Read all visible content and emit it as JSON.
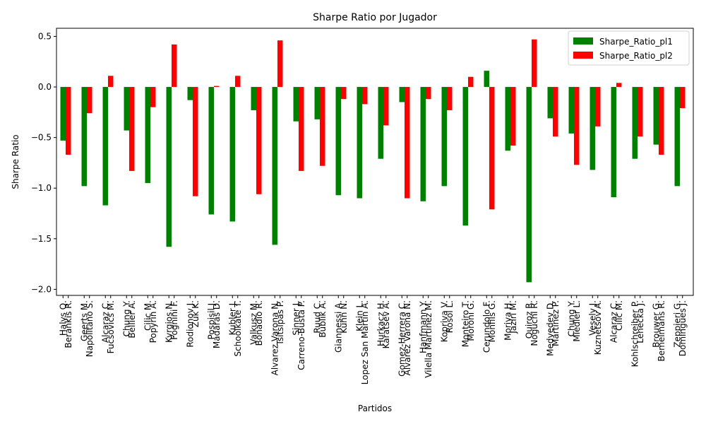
{
  "chart_data": {
    "type": "bar",
    "title": "Sharpe Ratio por Jugador",
    "x_label": "Partidos",
    "y_label": "Sharpe Ratio",
    "categories": [
      [
        "Halys Q.",
        "Berankis R."
      ],
      [
        "Geerts M.",
        "Napolitano S."
      ],
      [
        "Alcaraz C.",
        "Fucsovics M."
      ],
      [
        "Chung Y.",
        "Bellier A."
      ],
      [
        "Cilic M.",
        "Popyrin A."
      ],
      [
        "Kyrgios N.",
        "Fognini F."
      ],
      [
        "Rodionov J.",
        "Zuk K."
      ],
      [
        "Pospisil J.",
        "Madaras D."
      ],
      [
        "Kubler J.",
        "Schoolkate T."
      ],
      [
        "Valkusz M.",
        "Bonadio R."
      ],
      [
        "Alvarez Varona N.",
        "Tsitsipas P."
      ],
      [
        "Sinner J.",
        "Carreno-Busta P."
      ],
      [
        "Ruud C.",
        "Bublik A."
      ],
      [
        "Giannessi A.",
        "Kuhn N."
      ],
      [
        "Klein L.",
        "Lopez San Martin A."
      ],
      [
        "Hurkacz H.",
        "Karatsev A."
      ],
      [
        "Gomez-Herrera C.",
        "Alvarez Varona N."
      ],
      [
        "Hanfmann Y.",
        "Vilella Martinez M."
      ],
      [
        "Kopriva V.",
        "Rosol L."
      ],
      [
        "Monteiro T.",
        "Moroni G."
      ],
      [
        "Cerundolo F.",
        "Monfils G."
      ],
      [
        "Moriya H.",
        "Jaziri M."
      ],
      [
        "Quiroz R.",
        "Noguchi R."
      ],
      [
        "Medvedev D.",
        "Martinez P."
      ],
      [
        "Chung Y.",
        "Miedler L."
      ],
      [
        "Vesely J.",
        "Kuznetsov A."
      ],
      [
        "Alcaraz C.",
        "Cilic M."
      ],
      [
        "Kohlschreiber P.",
        "Lehecka J."
      ],
      [
        "Brouwer G.",
        "Bemelmans R."
      ],
      [
        "Zeppieri G.",
        "Domingues J."
      ]
    ],
    "series": [
      {
        "name": "Sharpe_Ratio_pl1",
        "color": "#008000",
        "values": [
          -0.53,
          -0.98,
          -1.17,
          -0.43,
          -0.95,
          -1.58,
          -0.13,
          -1.26,
          -1.33,
          -0.23,
          -1.56,
          -0.34,
          -0.32,
          -1.07,
          -1.1,
          -0.71,
          -0.15,
          -1.13,
          -0.98,
          -1.37,
          0.16,
          -0.63,
          -1.93,
          -0.31,
          -0.46,
          -0.82,
          -1.09,
          -0.71,
          -0.57,
          -0.98
        ]
      },
      {
        "name": "Sharpe_Ratio_pl2",
        "color": "#ff0000",
        "values": [
          -0.67,
          -0.26,
          0.11,
          -0.83,
          -0.2,
          0.42,
          -1.08,
          0.01,
          0.11,
          -1.06,
          0.46,
          -0.83,
          -0.78,
          -0.12,
          -0.17,
          -0.38,
          -1.1,
          -0.12,
          -0.23,
          0.1,
          -1.21,
          -0.58,
          0.47,
          -0.49,
          -0.77,
          -0.39,
          0.04,
          -0.49,
          -0.67,
          -0.21
        ]
      }
    ],
    "ylim": [
      -2.06,
      0.58
    ],
    "yticks": [
      0.5,
      {
        "value": 0,
        "label": "0.0"
      },
      {
        "value": -0.5,
        "label": "−0.5"
      },
      {
        "value": -1,
        "label": "−1.0"
      },
      {
        "value": -1.5,
        "label": "−1.5"
      },
      {
        "value": -2,
        "label": "−2.0"
      }
    ],
    "legend": "upper right"
  }
}
